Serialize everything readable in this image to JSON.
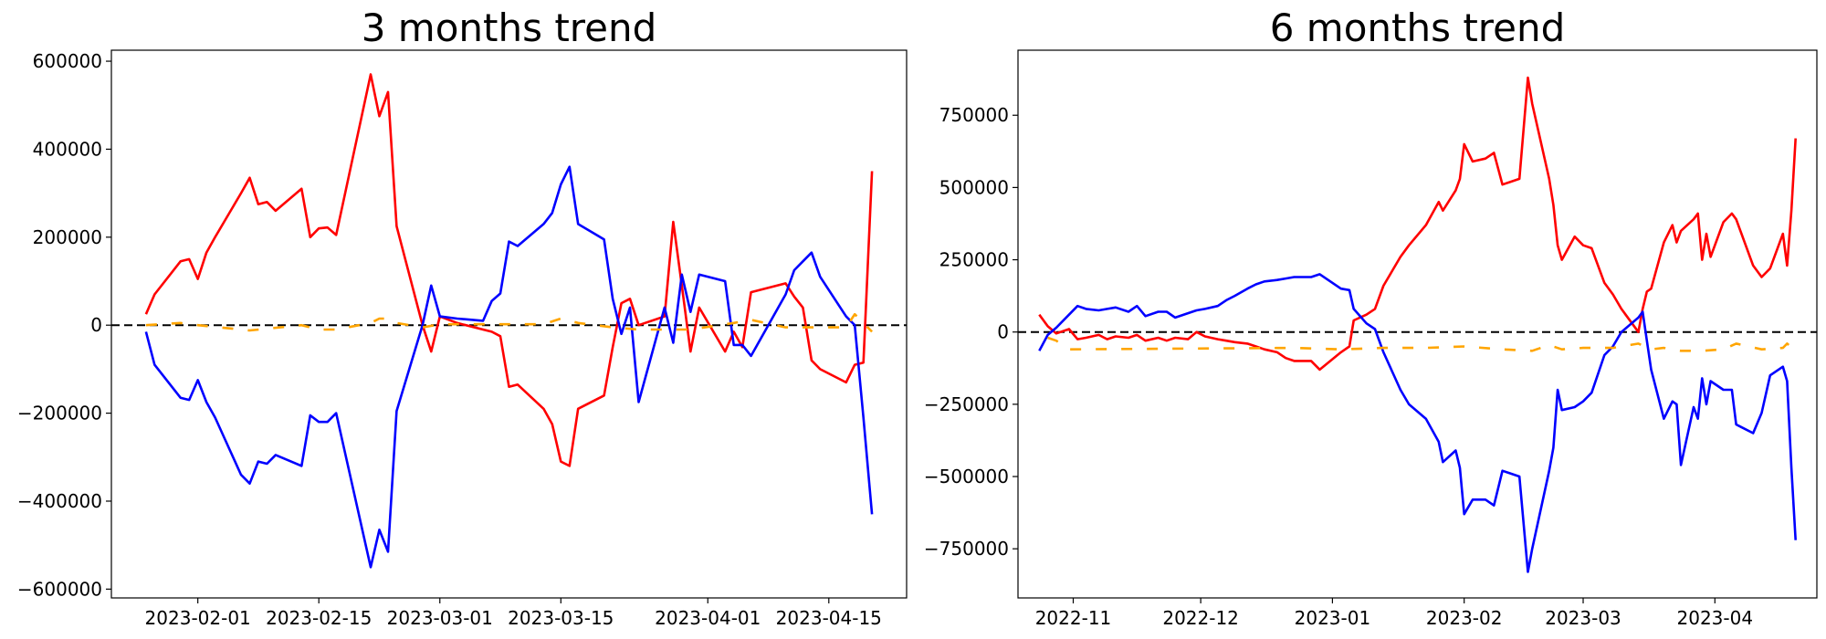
{
  "chart_data": [
    {
      "type": "line",
      "title": "3 months trend",
      "xlabel": "",
      "ylabel": "",
      "xlim": [
        "2023-01-22",
        "2023-04-24"
      ],
      "ylim": [
        -620000,
        625000
      ],
      "x_ticks": [
        "2023-02-01",
        "2023-02-15",
        "2023-03-01",
        "2023-03-15",
        "2023-04-01",
        "2023-04-15"
      ],
      "y_ticks": [
        -600000,
        -400000,
        -200000,
        0,
        200000,
        400000,
        600000
      ],
      "reference_line": {
        "y": 0,
        "style": "dashed",
        "color": "#000000"
      },
      "grid": false,
      "series": [
        {
          "color": "#ff0000",
          "dashed": false,
          "x": [
            "2023-01-26",
            "2023-01-27",
            "2023-01-30",
            "2023-01-31",
            "2023-02-01",
            "2023-02-02",
            "2023-02-03",
            "2023-02-06",
            "2023-02-07",
            "2023-02-08",
            "2023-02-09",
            "2023-02-10",
            "2023-02-13",
            "2023-02-14",
            "2023-02-15",
            "2023-02-16",
            "2023-02-17",
            "2023-02-21",
            "2023-02-22",
            "2023-02-23",
            "2023-02-24",
            "2023-02-27",
            "2023-02-28",
            "2023-03-01",
            "2023-03-03",
            "2023-03-06",
            "2023-03-07",
            "2023-03-08",
            "2023-03-09",
            "2023-03-10",
            "2023-03-13",
            "2023-03-14",
            "2023-03-15",
            "2023-03-16",
            "2023-03-17",
            "2023-03-20",
            "2023-03-21",
            "2023-03-22",
            "2023-03-23",
            "2023-03-24",
            "2023-03-27",
            "2023-03-28",
            "2023-03-29",
            "2023-03-30",
            "2023-03-31",
            "2023-04-03",
            "2023-04-04",
            "2023-04-05",
            "2023-04-06",
            "2023-04-10",
            "2023-04-11",
            "2023-04-12",
            "2023-04-13",
            "2023-04-14",
            "2023-04-17",
            "2023-04-18",
            "2023-04-19",
            "2023-04-20"
          ],
          "y": [
            25000,
            70000,
            145000,
            150000,
            105000,
            165000,
            200000,
            300000,
            335000,
            275000,
            280000,
            260000,
            310000,
            200000,
            220000,
            222000,
            205000,
            570000,
            475000,
            530000,
            225000,
            0,
            -60000,
            20000,
            5000,
            -10000,
            -15000,
            -25000,
            -140000,
            -135000,
            -190000,
            -225000,
            -310000,
            -320000,
            -190000,
            -160000,
            -50000,
            50000,
            60000,
            0,
            20000,
            235000,
            90000,
            -60000,
            40000,
            -60000,
            -15000,
            -50000,
            75000,
            95000,
            65000,
            40000,
            -80000,
            -100000,
            -130000,
            -90000,
            -85000,
            350000
          ]
        },
        {
          "color": "#0000ff",
          "dashed": false,
          "x": [
            "2023-01-26",
            "2023-01-27",
            "2023-01-30",
            "2023-01-31",
            "2023-02-01",
            "2023-02-02",
            "2023-02-03",
            "2023-02-06",
            "2023-02-07",
            "2023-02-08",
            "2023-02-09",
            "2023-02-10",
            "2023-02-13",
            "2023-02-14",
            "2023-02-15",
            "2023-02-16",
            "2023-02-17",
            "2023-02-21",
            "2023-02-22",
            "2023-02-23",
            "2023-02-24",
            "2023-02-27",
            "2023-02-28",
            "2023-03-01",
            "2023-03-03",
            "2023-03-06",
            "2023-03-07",
            "2023-03-08",
            "2023-03-09",
            "2023-03-10",
            "2023-03-13",
            "2023-03-14",
            "2023-03-15",
            "2023-03-16",
            "2023-03-17",
            "2023-03-20",
            "2023-03-21",
            "2023-03-22",
            "2023-03-23",
            "2023-03-24",
            "2023-03-27",
            "2023-03-28",
            "2023-03-29",
            "2023-03-30",
            "2023-03-31",
            "2023-04-03",
            "2023-04-04",
            "2023-04-05",
            "2023-04-06",
            "2023-04-10",
            "2023-04-11",
            "2023-04-12",
            "2023-04-13",
            "2023-04-14",
            "2023-04-17",
            "2023-04-18",
            "2023-04-19",
            "2023-04-20"
          ],
          "y": [
            -15000,
            -90000,
            -165000,
            -170000,
            -125000,
            -175000,
            -210000,
            -340000,
            -360000,
            -310000,
            -315000,
            -295000,
            -320000,
            -205000,
            -220000,
            -220000,
            -200000,
            -550000,
            -465000,
            -515000,
            -195000,
            0,
            90000,
            20000,
            15000,
            10000,
            55000,
            72000,
            190000,
            180000,
            230000,
            255000,
            320000,
            360000,
            230000,
            195000,
            60000,
            -20000,
            40000,
            -175000,
            40000,
            -40000,
            115000,
            30000,
            115000,
            100000,
            -45000,
            -45000,
            -70000,
            70000,
            125000,
            145000,
            165000,
            110000,
            20000,
            0,
            -210000,
            -430000
          ]
        },
        {
          "color": "#ffa500",
          "dashed": true,
          "x": [
            "2023-01-26",
            "2023-01-30",
            "2023-01-31",
            "2023-02-01",
            "2023-02-06",
            "2023-02-07",
            "2023-02-13",
            "2023-02-15",
            "2023-02-17",
            "2023-02-21",
            "2023-02-22",
            "2023-02-23",
            "2023-02-24",
            "2023-02-27",
            "2023-03-01",
            "2023-03-07",
            "2023-03-13",
            "2023-03-15",
            "2023-03-17",
            "2023-03-21",
            "2023-03-24",
            "2023-03-30",
            "2023-04-04",
            "2023-04-06",
            "2023-04-10",
            "2023-04-13",
            "2023-04-17",
            "2023-04-18",
            "2023-04-20"
          ],
          "y": [
            0,
            5000,
            2000,
            0,
            -10000,
            -12000,
            0,
            -10000,
            -10000,
            5000,
            15000,
            15000,
            5000,
            -5000,
            2000,
            2000,
            2000,
            15000,
            5000,
            -5000,
            -10000,
            -10000,
            5000,
            12000,
            -5000,
            -5000,
            -5000,
            25000,
            -15000
          ]
        }
      ]
    },
    {
      "type": "line",
      "title": "6 months trend",
      "xlabel": "",
      "ylabel": "",
      "xlim": [
        "2022-10-19",
        "2023-04-25"
      ],
      "ylim": [
        -920000,
        975000
      ],
      "x_ticks": [
        "2022-11-01",
        "2022-12-01",
        "2023-01-01",
        "2023-02-01",
        "2023-03-01",
        "2023-04-01"
      ],
      "x_tick_labels": [
        "2022-11",
        "2022-12",
        "2023-01",
        "2023-02",
        "2023-03",
        "2023-04"
      ],
      "y_ticks": [
        -750000,
        -500000,
        -250000,
        0,
        250000,
        500000,
        750000
      ],
      "reference_line": {
        "y": 0,
        "style": "dashed",
        "color": "#000000"
      },
      "grid": false,
      "series": [
        {
          "color": "#ff0000",
          "dashed": false,
          "x": [
            "2022-10-24",
            "2022-10-26",
            "2022-10-28",
            "2022-10-31",
            "2022-11-02",
            "2022-11-04",
            "2022-11-07",
            "2022-11-09",
            "2022-11-11",
            "2022-11-14",
            "2022-11-16",
            "2022-11-18",
            "2022-11-21",
            "2022-11-23",
            "2022-11-25",
            "2022-11-28",
            "2022-11-30",
            "2022-12-02",
            "2022-12-05",
            "2022-12-07",
            "2022-12-09",
            "2022-12-12",
            "2022-12-14",
            "2022-12-16",
            "2022-12-19",
            "2022-12-21",
            "2022-12-23",
            "2022-12-27",
            "2022-12-29",
            "2023-01-03",
            "2023-01-05",
            "2023-01-06",
            "2023-01-09",
            "2023-01-11",
            "2023-01-13",
            "2023-01-17",
            "2023-01-19",
            "2023-01-23",
            "2023-01-26",
            "2023-01-27",
            "2023-01-30",
            "2023-01-31",
            "2023-02-01",
            "2023-02-03",
            "2023-02-06",
            "2023-02-08",
            "2023-02-10",
            "2023-02-14",
            "2023-02-16",
            "2023-02-17",
            "2023-02-21",
            "2023-02-22",
            "2023-02-23",
            "2023-02-24",
            "2023-02-27",
            "2023-03-01",
            "2023-03-03",
            "2023-03-06",
            "2023-03-08",
            "2023-03-10",
            "2023-03-14",
            "2023-03-15",
            "2023-03-16",
            "2023-03-17",
            "2023-03-20",
            "2023-03-22",
            "2023-03-23",
            "2023-03-24",
            "2023-03-27",
            "2023-03-28",
            "2023-03-29",
            "2023-03-30",
            "2023-03-31",
            "2023-04-03",
            "2023-04-05",
            "2023-04-06",
            "2023-04-10",
            "2023-04-12",
            "2023-04-14",
            "2023-04-17",
            "2023-04-18",
            "2023-04-19",
            "2023-04-20"
          ],
          "y": [
            60000,
            20000,
            -5000,
            10000,
            -25000,
            -20000,
            -10000,
            -25000,
            -15000,
            -20000,
            -10000,
            -30000,
            -20000,
            -30000,
            -20000,
            -25000,
            0,
            -15000,
            -25000,
            -30000,
            -35000,
            -40000,
            -50000,
            -60000,
            -70000,
            -90000,
            -100000,
            -100000,
            -130000,
            -70000,
            -50000,
            40000,
            60000,
            80000,
            160000,
            260000,
            300000,
            370000,
            450000,
            420000,
            490000,
            530000,
            650000,
            590000,
            600000,
            620000,
            510000,
            530000,
            880000,
            790000,
            530000,
            440000,
            300000,
            250000,
            330000,
            300000,
            290000,
            170000,
            130000,
            80000,
            0,
            80000,
            140000,
            150000,
            310000,
            370000,
            310000,
            350000,
            390000,
            410000,
            250000,
            340000,
            260000,
            380000,
            410000,
            390000,
            230000,
            190000,
            220000,
            340000,
            230000,
            420000,
            670000
          ]
        },
        {
          "color": "#0000ff",
          "dashed": false,
          "x": [
            "2022-10-24",
            "2022-10-26",
            "2022-10-28",
            "2022-10-31",
            "2022-11-02",
            "2022-11-04",
            "2022-11-07",
            "2022-11-09",
            "2022-11-11",
            "2022-11-14",
            "2022-11-16",
            "2022-11-18",
            "2022-11-21",
            "2022-11-23",
            "2022-11-25",
            "2022-11-28",
            "2022-11-30",
            "2022-12-02",
            "2022-12-05",
            "2022-12-07",
            "2022-12-09",
            "2022-12-12",
            "2022-12-14",
            "2022-12-16",
            "2022-12-19",
            "2022-12-21",
            "2022-12-23",
            "2022-12-27",
            "2022-12-29",
            "2023-01-03",
            "2023-01-05",
            "2023-01-06",
            "2023-01-09",
            "2023-01-11",
            "2023-01-13",
            "2023-01-17",
            "2023-01-19",
            "2023-01-23",
            "2023-01-26",
            "2023-01-27",
            "2023-01-30",
            "2023-01-31",
            "2023-02-01",
            "2023-02-03",
            "2023-02-06",
            "2023-02-08",
            "2023-02-10",
            "2023-02-14",
            "2023-02-16",
            "2023-02-17",
            "2023-02-21",
            "2023-02-22",
            "2023-02-23",
            "2023-02-24",
            "2023-02-27",
            "2023-03-01",
            "2023-03-03",
            "2023-03-06",
            "2023-03-08",
            "2023-03-10",
            "2023-03-14",
            "2023-03-15",
            "2023-03-16",
            "2023-03-17",
            "2023-03-20",
            "2023-03-22",
            "2023-03-23",
            "2023-03-24",
            "2023-03-27",
            "2023-03-28",
            "2023-03-29",
            "2023-03-30",
            "2023-03-31",
            "2023-04-03",
            "2023-04-05",
            "2023-04-06",
            "2023-04-10",
            "2023-04-12",
            "2023-04-14",
            "2023-04-17",
            "2023-04-18",
            "2023-04-19",
            "2023-04-20"
          ],
          "y": [
            -65000,
            -10000,
            15000,
            60000,
            90000,
            80000,
            75000,
            80000,
            85000,
            70000,
            90000,
            55000,
            70000,
            70000,
            50000,
            65000,
            75000,
            80000,
            90000,
            110000,
            125000,
            150000,
            165000,
            175000,
            180000,
            185000,
            190000,
            190000,
            200000,
            150000,
            145000,
            80000,
            30000,
            10000,
            -70000,
            -200000,
            -250000,
            -300000,
            -380000,
            -450000,
            -410000,
            -470000,
            -630000,
            -580000,
            -580000,
            -600000,
            -480000,
            -500000,
            -830000,
            -750000,
            -480000,
            -400000,
            -200000,
            -270000,
            -260000,
            -240000,
            -210000,
            -80000,
            -50000,
            0,
            50000,
            70000,
            -30000,
            -130000,
            -300000,
            -240000,
            -250000,
            -460000,
            -260000,
            -300000,
            -160000,
            -250000,
            -170000,
            -200000,
            -200000,
            -320000,
            -350000,
            -280000,
            -150000,
            -120000,
            -170000,
            -470000,
            -720000
          ]
        },
        {
          "color": "#ffa500",
          "dashed": true,
          "x": [
            "2022-10-26",
            "2022-10-28",
            "2022-10-31",
            "2022-12-23",
            "2023-01-03",
            "2023-01-13",
            "2023-01-23",
            "2023-02-01",
            "2023-02-10",
            "2023-02-17",
            "2023-02-21",
            "2023-02-24",
            "2023-03-01",
            "2023-03-08",
            "2023-03-14",
            "2023-03-17",
            "2023-03-20",
            "2023-03-24",
            "2023-03-29",
            "2023-04-03",
            "2023-04-06",
            "2023-04-12",
            "2023-04-17",
            "2023-04-18",
            "2023-04-20"
          ],
          "y": [
            -20000,
            -30000,
            -60000,
            -55000,
            -60000,
            -55000,
            -55000,
            -50000,
            -60000,
            -65000,
            -45000,
            -60000,
            -55000,
            -55000,
            -40000,
            -60000,
            -55000,
            -65000,
            -65000,
            -60000,
            -40000,
            -60000,
            -55000,
            -40000,
            -65000
          ]
        }
      ]
    }
  ]
}
